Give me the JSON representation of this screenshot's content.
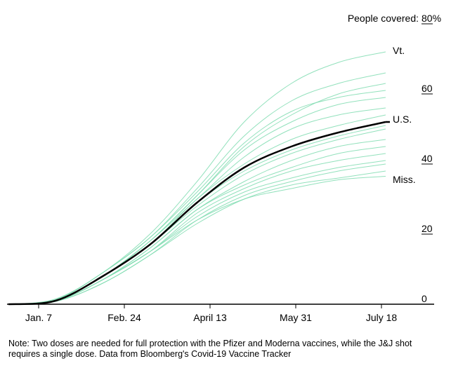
{
  "chart_data": {
    "type": "line",
    "x_ticks": [
      "Jan. 7",
      "Feb. 24",
      "April 13",
      "May 31",
      "July 18"
    ],
    "y_ticks": [
      "0",
      "20",
      "40",
      "60",
      "80%"
    ],
    "y_title": "People covered:",
    "ylim": [
      0,
      80
    ],
    "x_range": [
      "Dec. 14",
      "July 18"
    ],
    "grid": false,
    "colors": {
      "us": "#000000",
      "states": "#7fdcb0",
      "axis": "#000000"
    },
    "x": [
      "Dec. 14",
      "Jan. 7",
      "Feb. 24",
      "March 20",
      "April 13",
      "May 7",
      "May 31",
      "June 24",
      "July 18"
    ],
    "series": [
      {
        "name": "Vt.",
        "emphasis": false,
        "values": [
          0,
          1.5,
          9,
          20,
          35,
          52,
          63,
          69,
          72
        ]
      },
      {
        "name": "U.S.",
        "emphasis": true,
        "values": [
          0,
          1.0,
          8,
          17,
          29,
          39,
          45,
          49,
          52
        ]
      },
      {
        "name": "Miss.",
        "emphasis": false,
        "values": [
          0,
          0.8,
          7,
          15,
          24,
          30,
          33,
          35.5,
          36.5
        ]
      },
      {
        "name": "",
        "emphasis": false,
        "values": [
          0,
          1.3,
          9,
          19,
          33,
          48,
          58,
          63,
          66
        ]
      },
      {
        "name": "",
        "emphasis": false,
        "values": [
          0,
          1.2,
          9,
          19,
          32,
          46,
          55,
          59,
          61
        ]
      },
      {
        "name": "",
        "emphasis": false,
        "values": [
          0,
          1.2,
          8,
          18,
          31,
          44,
          52,
          57,
          59
        ]
      },
      {
        "name": "",
        "emphasis": false,
        "values": [
          0,
          1.1,
          8,
          18,
          30,
          42,
          50,
          54,
          56
        ]
      },
      {
        "name": "",
        "emphasis": false,
        "values": [
          0,
          1.1,
          8,
          17,
          30,
          40,
          47,
          51,
          54
        ]
      },
      {
        "name": "",
        "emphasis": false,
        "values": [
          0,
          1.0,
          8,
          17,
          28,
          37,
          43,
          47,
          50
        ]
      },
      {
        "name": "",
        "emphasis": false,
        "values": [
          0,
          1.0,
          7,
          16,
          27,
          35,
          41,
          45,
          47
        ]
      },
      {
        "name": "",
        "emphasis": false,
        "values": [
          0,
          0.9,
          7,
          16,
          27,
          34,
          39,
          43,
          45
        ]
      },
      {
        "name": "",
        "emphasis": false,
        "values": [
          0,
          0.9,
          7,
          15,
          26,
          33,
          38,
          41,
          43
        ]
      },
      {
        "name": "",
        "emphasis": false,
        "values": [
          0,
          0.9,
          7,
          15,
          25,
          32,
          36,
          39,
          41
        ]
      },
      {
        "name": "",
        "emphasis": false,
        "values": [
          0,
          0.8,
          6,
          14,
          24,
          31,
          35,
          38,
          40
        ]
      },
      {
        "name": "",
        "emphasis": false,
        "values": [
          0,
          0.8,
          6,
          14,
          23,
          30,
          34,
          36,
          38
        ]
      },
      {
        "name": "",
        "emphasis": false,
        "values": [
          0,
          1.2,
          8,
          18,
          31,
          45,
          54,
          60,
          63
        ]
      },
      {
        "name": "",
        "emphasis": false,
        "values": [
          0,
          1.0,
          8,
          17,
          29,
          38,
          44,
          48,
          51
        ]
      }
    ]
  },
  "labels": {
    "vt": "Vt.",
    "us": "U.S.",
    "miss": "Miss."
  },
  "note": "Note: Two doses are needed for full protection with the Pfizer and Moderna vaccines, while the J&J shot requires a single dose. Data from Bloomberg's Covid-19 Vaccine Tracker"
}
